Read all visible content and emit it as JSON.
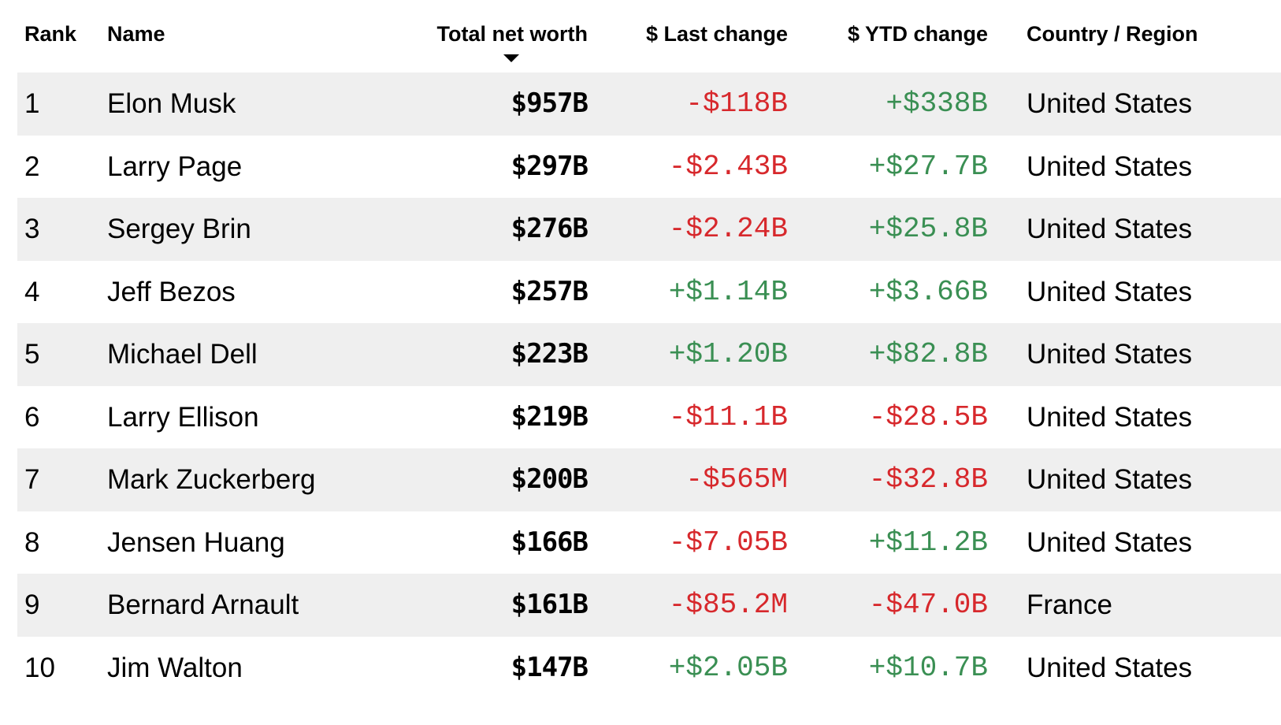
{
  "headers": {
    "rank": "Rank",
    "name": "Name",
    "total_net_worth": "Total net worth",
    "last_change": "$ Last change",
    "ytd_change": "$ YTD change",
    "country": "Country / Region"
  },
  "sort_icon": "caret-down-icon",
  "colors": {
    "negative": "#d7282c",
    "positive": "#3a8f53",
    "row_shade": "#efefef"
  },
  "rows": [
    {
      "rank": "1",
      "name": "Elon Musk",
      "worth": "$957B",
      "last": "-$118B",
      "ytd": "+$338B",
      "country": "United States"
    },
    {
      "rank": "2",
      "name": "Larry Page",
      "worth": "$297B",
      "last": "-$2.43B",
      "ytd": "+$27.7B",
      "country": "United States"
    },
    {
      "rank": "3",
      "name": "Sergey Brin",
      "worth": "$276B",
      "last": "-$2.24B",
      "ytd": "+$25.8B",
      "country": "United States"
    },
    {
      "rank": "4",
      "name": "Jeff Bezos",
      "worth": "$257B",
      "last": "+$1.14B",
      "ytd": "+$3.66B",
      "country": "United States"
    },
    {
      "rank": "5",
      "name": "Michael Dell",
      "worth": "$223B",
      "last": "+$1.20B",
      "ytd": "+$82.8B",
      "country": "United States"
    },
    {
      "rank": "6",
      "name": "Larry Ellison",
      "worth": "$219B",
      "last": "-$11.1B",
      "ytd": "-$28.5B",
      "country": "United States"
    },
    {
      "rank": "7",
      "name": "Mark Zuckerberg",
      "worth": "$200B",
      "last": "-$565M",
      "ytd": "-$32.8B",
      "country": "United States"
    },
    {
      "rank": "8",
      "name": "Jensen Huang",
      "worth": "$166B",
      "last": "-$7.05B",
      "ytd": "+$11.2B",
      "country": "United States"
    },
    {
      "rank": "9",
      "name": "Bernard Arnault",
      "worth": "$161B",
      "last": "-$85.2M",
      "ytd": "-$47.0B",
      "country": "France"
    },
    {
      "rank": "10",
      "name": "Jim Walton",
      "worth": "$147B",
      "last": "+$2.05B",
      "ytd": "+$10.7B",
      "country": "United States"
    }
  ]
}
